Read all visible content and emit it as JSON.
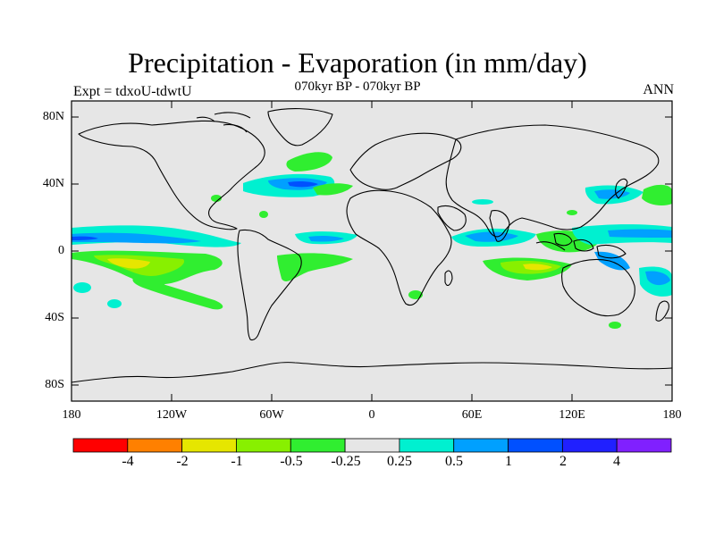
{
  "title": "Precipitation - Evaporation (in mm/day)",
  "subtitle": "070kyr BP - 070kyr BP",
  "left_label": "Expt = tdxoU-tdwtU",
  "right_label": "ANN",
  "lat_labels": [
    "80N",
    "40N",
    "0",
    "40S",
    "80S"
  ],
  "lon_labels": [
    "180",
    "120W",
    "60W",
    "0",
    "60E",
    "120E",
    "180"
  ],
  "colorbar": {
    "colors": [
      "#ff0000",
      "#ff8000",
      "#e6e600",
      "#88f000",
      "#30ee30",
      "#e6e6e6",
      "#00f0d0",
      "#00a0ff",
      "#0050ff",
      "#2020ff",
      "#8020ff"
    ],
    "labels": [
      "-4",
      "-2",
      "-1",
      "-0.5",
      "-0.25",
      "0.25",
      "0.5",
      "1",
      "2",
      "4"
    ]
  },
  "colors": {
    "background": "#e6e6e6",
    "coast": "#000000"
  }
}
